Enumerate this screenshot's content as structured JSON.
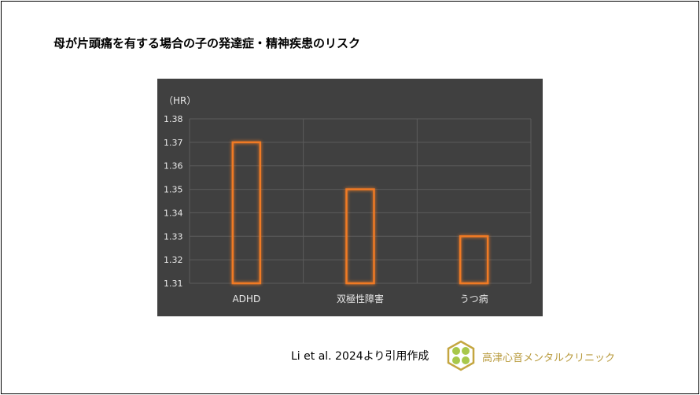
{
  "title": "母が片頭痛を有する場合の子の発達症・精神疾患のリスク",
  "citation": "Li et al. 2024より引用作成",
  "logo": {
    "name": "高津心音メンタルクリニック",
    "color": "#b89a3c",
    "icon": "clover-hexagon-logo"
  },
  "chart_data": {
    "type": "bar",
    "title": "",
    "ylabel": "（HR）",
    "xlabel": "",
    "categories": [
      "ADHD",
      "双極性障害",
      "うつ病"
    ],
    "values": [
      1.37,
      1.35,
      1.33
    ],
    "ylim": [
      1.31,
      1.38
    ],
    "yticks": [
      "1.31",
      "1.32",
      "1.33",
      "1.34",
      "1.35",
      "1.36",
      "1.37",
      "1.38"
    ],
    "grid": true,
    "background": "#404040",
    "bar_style": "outline",
    "bar_color": "#f07a24"
  }
}
